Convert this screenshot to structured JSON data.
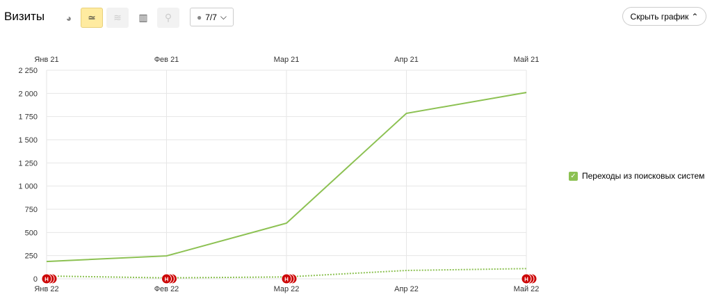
{
  "header": {
    "title": "Визиты",
    "segments_label": "7/7",
    "hide_chart_label": "Скрыть график"
  },
  "toolbar": {
    "icons": [
      "pie-chart-icon",
      "line-chart-icon",
      "area-chart-icon",
      "bar-chart-icon",
      "map-icon",
      "comment-icon"
    ],
    "active": "line-chart-icon"
  },
  "legend": {
    "items": [
      {
        "label": "Переходы из поисковых систем",
        "color": "#8cc152",
        "checked": true
      }
    ]
  },
  "chart_data": {
    "type": "line",
    "top_axis_labels": [
      "Янв 21",
      "Фев 21",
      "Мар 21",
      "Апр 21",
      "Май 21"
    ],
    "categories": [
      "Янв 22",
      "Фев 22",
      "Мар 22",
      "Апр 22",
      "Май 22"
    ],
    "ylim": [
      0,
      2250
    ],
    "yticks": [
      "0",
      "250",
      "500",
      "750",
      "1 000",
      "1 250",
      "1 500",
      "1 750",
      "2 000",
      "2 250"
    ],
    "ytick_values": [
      0,
      250,
      500,
      750,
      1000,
      1250,
      1500,
      1750,
      2000,
      2250
    ],
    "grid": true,
    "legend_position": "right",
    "series": [
      {
        "name": "Переходы из поисковых систем",
        "period": "2022",
        "style": "solid",
        "color": "#8cc152",
        "values": [
          187,
          247,
          600,
          1785,
          2010
        ]
      },
      {
        "name": "Переходы из поисковых систем",
        "period": "2021",
        "style": "dotted",
        "color": "#8cc152",
        "values": [
          30,
          10,
          20,
          90,
          110
        ]
      }
    ],
    "annotations": [
      {
        "category": "Янв 22",
        "label": "Н"
      },
      {
        "category": "Фев 22",
        "label": "Н"
      },
      {
        "category": "Мар 22",
        "label": "Н"
      },
      {
        "category": "Май 22",
        "label": "Н"
      }
    ],
    "annotation_color": "#cc0000"
  }
}
